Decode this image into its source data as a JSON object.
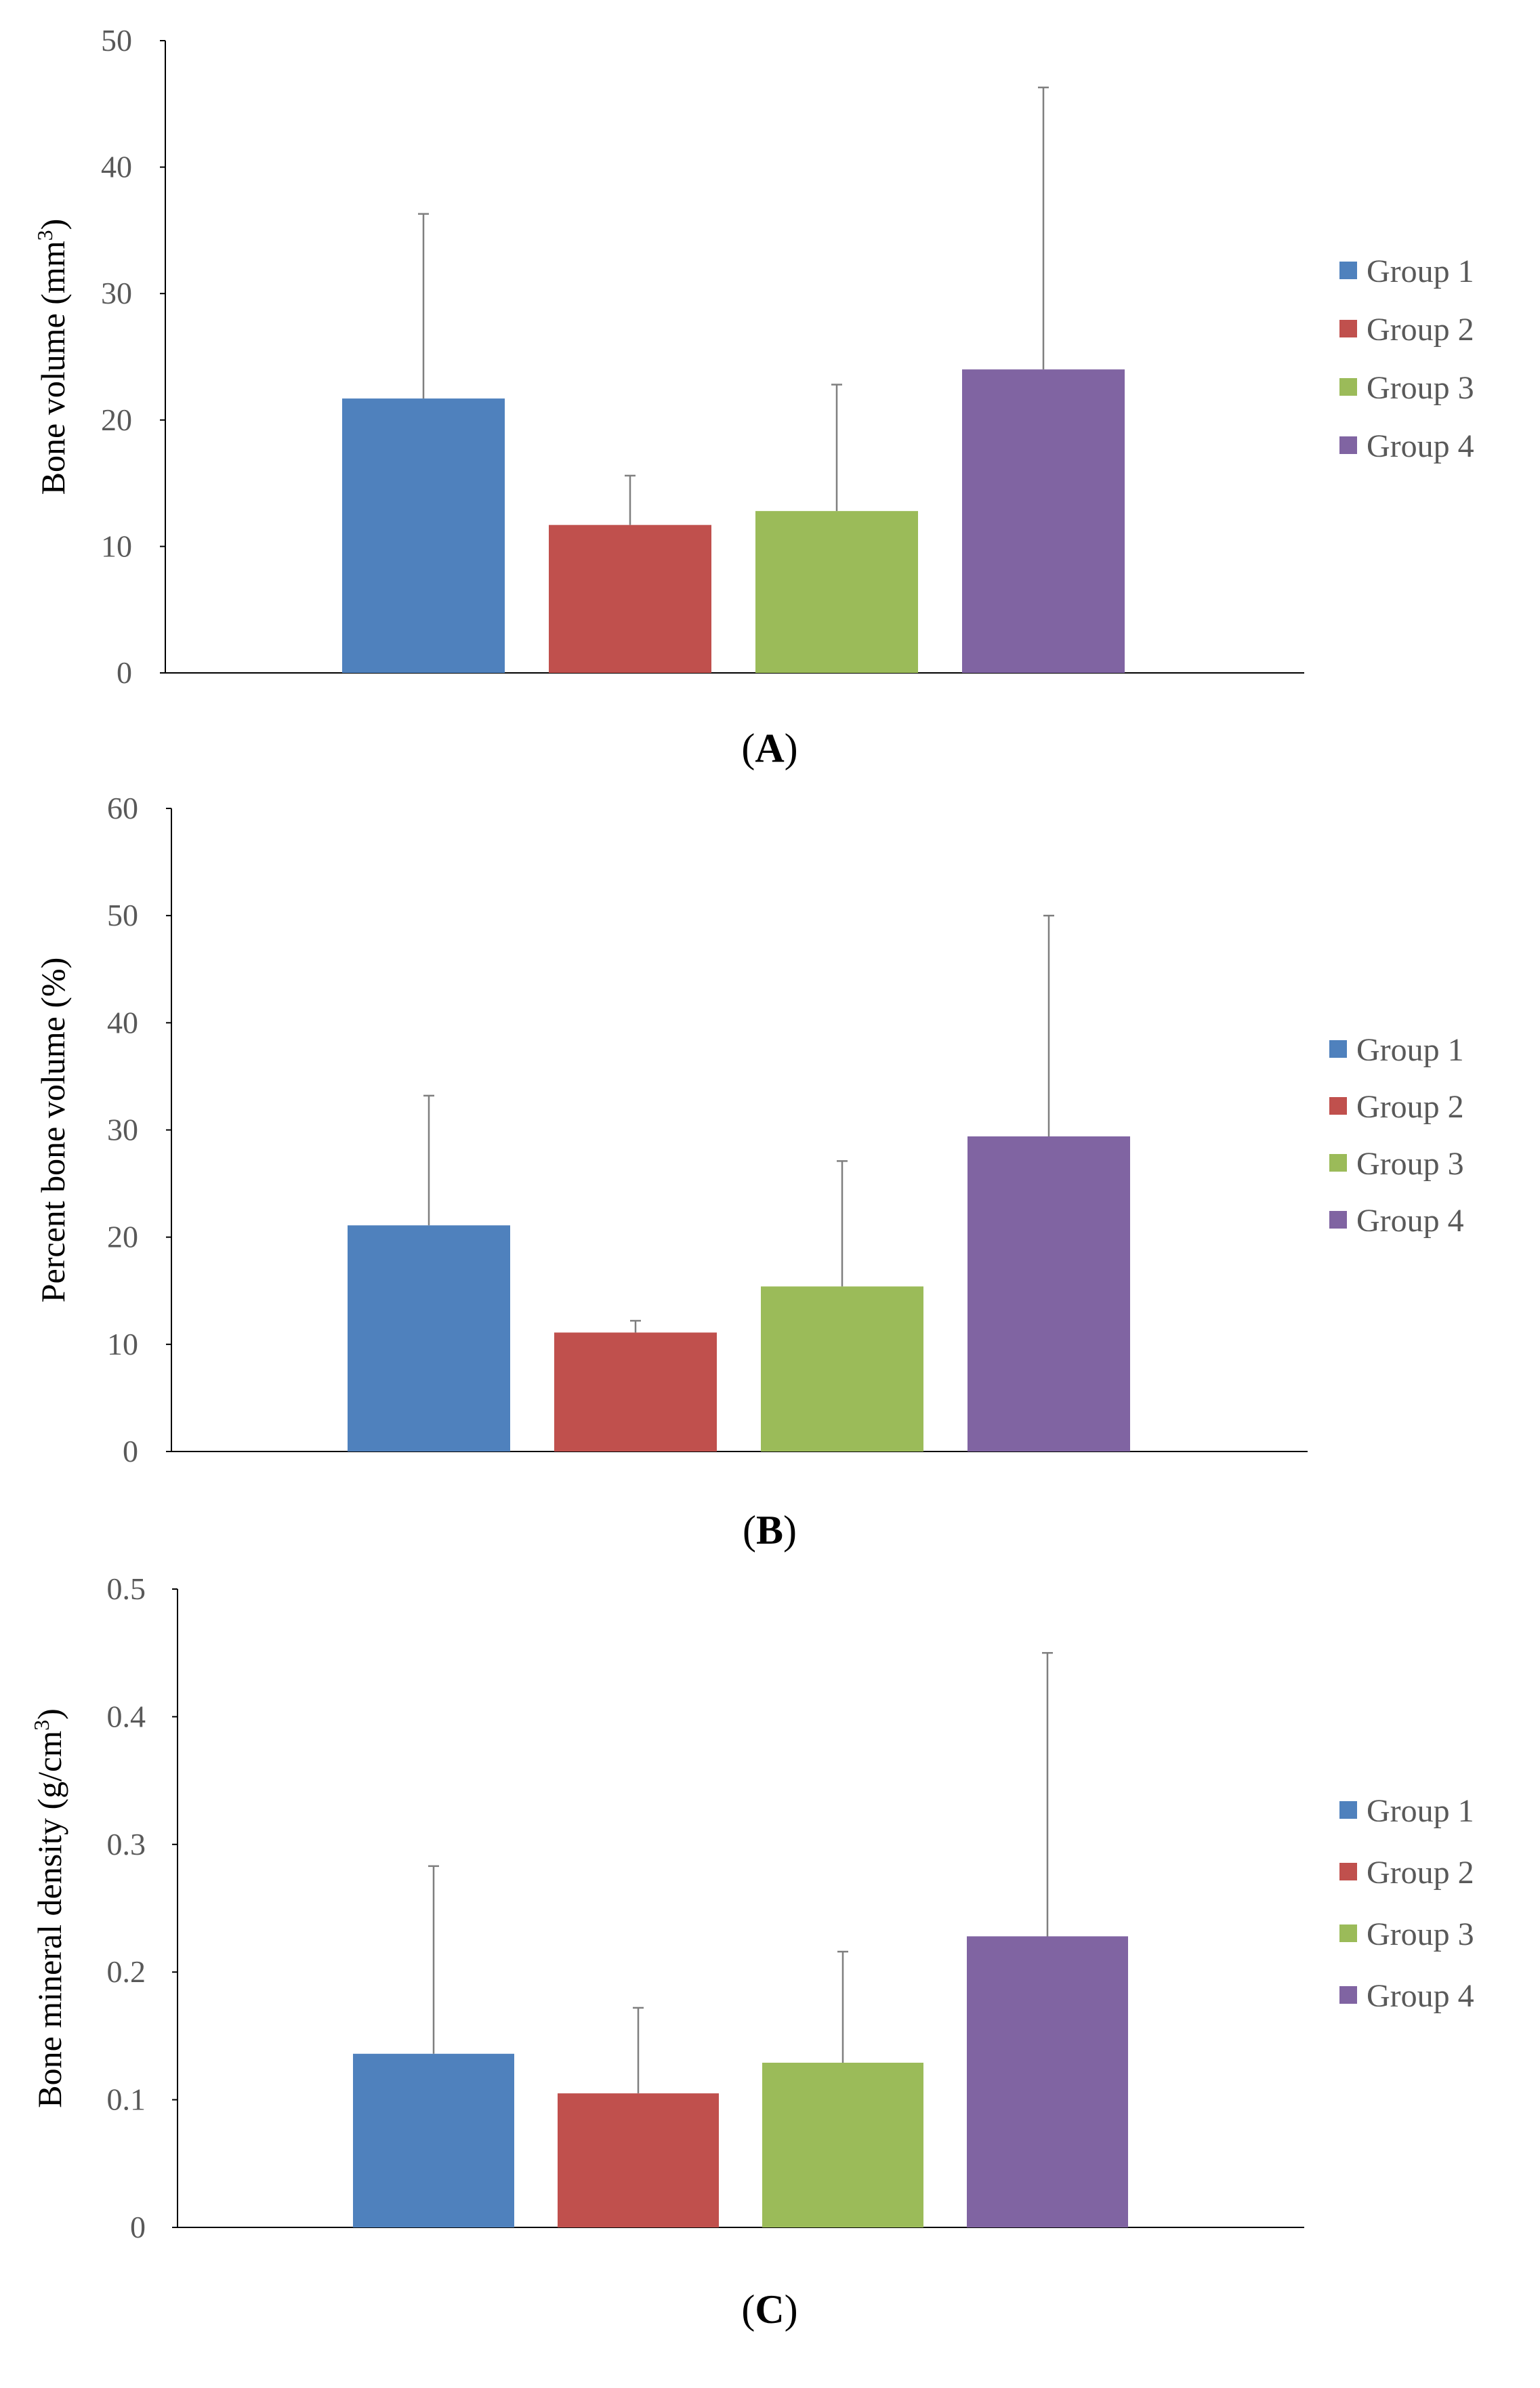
{
  "chart_data": [
    {
      "type": "bar",
      "panel_label": "A",
      "ylabel": "Bone volume (mm",
      "ylabel_sup": "3",
      "ylabel_end": ")",
      "ylim": [
        0,
        50
      ],
      "yticks": [
        0,
        10,
        20,
        30,
        40,
        50
      ],
      "categories": [
        "Group 1",
        "Group 2",
        "Group 3",
        "Group 4"
      ],
      "values": [
        21.7,
        11.7,
        12.8,
        24.0
      ],
      "error_upper": [
        36.3,
        15.6,
        22.8,
        46.3
      ],
      "legend_position": "right",
      "grid": false
    },
    {
      "type": "bar",
      "panel_label": "B",
      "ylabel": "Percent bone volume (%)",
      "ylim": [
        0,
        60
      ],
      "yticks": [
        0,
        10,
        20,
        30,
        40,
        50,
        60
      ],
      "categories": [
        "Group 1",
        "Group 2",
        "Group 3",
        "Group 4"
      ],
      "values": [
        21.1,
        11.1,
        15.4,
        29.4
      ],
      "error_upper": [
        33.2,
        12.2,
        27.1,
        50.0
      ],
      "legend_position": "right",
      "grid": false
    },
    {
      "type": "bar",
      "panel_label": "C",
      "ylabel": "Bone mineral density (g/cm",
      "ylabel_sup": "3",
      "ylabel_end": ")",
      "ylim": [
        0,
        0.5
      ],
      "yticks": [
        0,
        0.1,
        0.2,
        0.3,
        0.4,
        0.5
      ],
      "categories": [
        "Group 1",
        "Group 2",
        "Group 3",
        "Group 4"
      ],
      "values": [
        0.136,
        0.105,
        0.129,
        0.228
      ],
      "error_upper": [
        0.283,
        0.172,
        0.216,
        0.45
      ],
      "legend_position": "right",
      "grid": false
    }
  ],
  "legend_entries": [
    "Group 1",
    "Group 2",
    "Group 3",
    "Group 4"
  ],
  "colors": [
    "#4f81bd",
    "#c0504d",
    "#9bbb59",
    "#8064a2"
  ],
  "axis_color": "#000000",
  "tick_color": "#595959",
  "error_bar_color": "#7f7f7f"
}
